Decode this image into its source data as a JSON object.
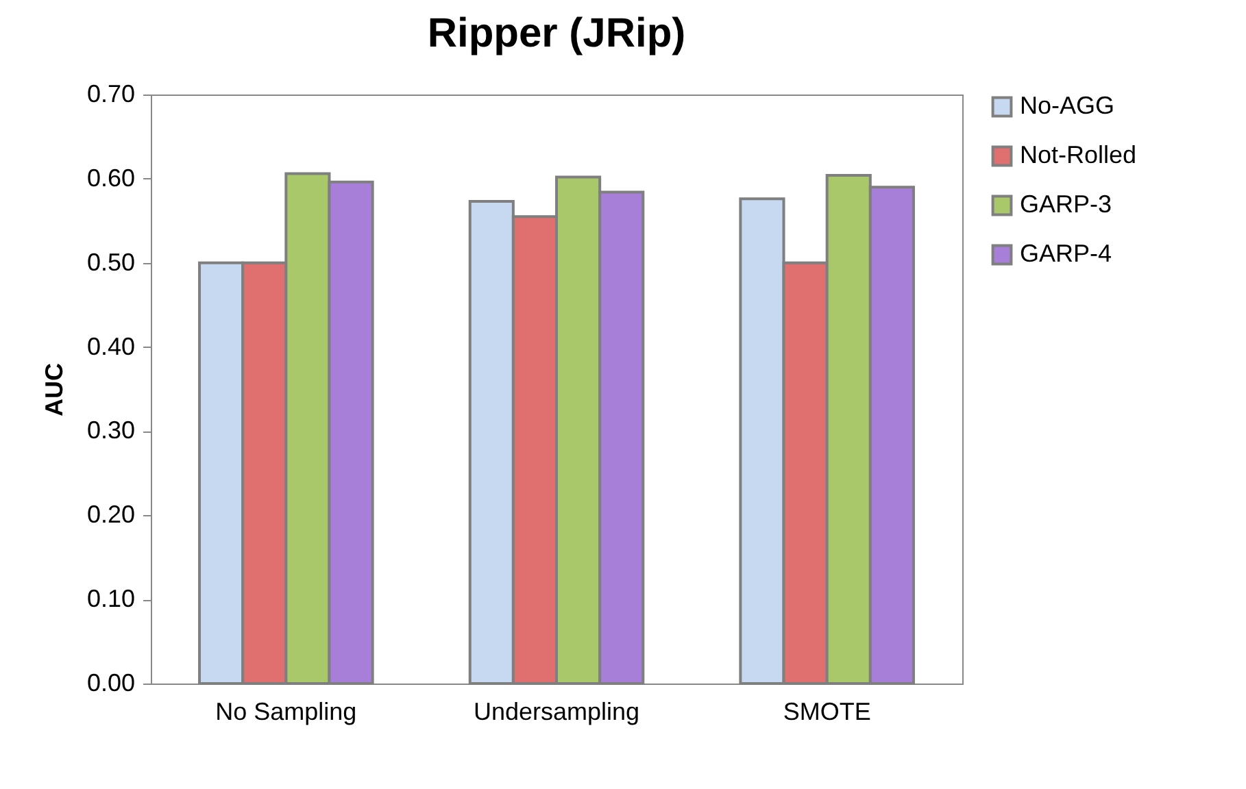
{
  "chart_data": {
    "type": "bar",
    "title": "Ripper (JRip)",
    "ylabel": "AUC",
    "categories": [
      "No Sampling",
      "Undersampling",
      "SMOTE"
    ],
    "series": [
      {
        "name": "No-AGG",
        "color": "#c6d9f1",
        "values": [
          0.5,
          0.573,
          0.576
        ]
      },
      {
        "name": "Not-Rolled",
        "color": "#e07070",
        "values": [
          0.5,
          0.555,
          0.5
        ]
      },
      {
        "name": "GARP-3",
        "color": "#a9c86a",
        "values": [
          0.606,
          0.602,
          0.604
        ]
      },
      {
        "name": "GARP-4",
        "color": "#a77fd8",
        "values": [
          0.596,
          0.584,
          0.59
        ]
      }
    ],
    "ylim": [
      0,
      0.7
    ],
    "yticks": [
      {
        "value": 0,
        "label": "0.00"
      },
      {
        "value": 0.1,
        "label": "0.10"
      },
      {
        "value": 0.2,
        "label": "0.20"
      },
      {
        "value": 0.3,
        "label": "0.30"
      },
      {
        "value": 0.4,
        "label": "0.40"
      },
      {
        "value": 0.5,
        "label": "0.50"
      },
      {
        "value": 0.6,
        "label": "0.60"
      },
      {
        "value": 0.7,
        "label": "0.70"
      }
    ],
    "grid": false,
    "legend": "right"
  }
}
